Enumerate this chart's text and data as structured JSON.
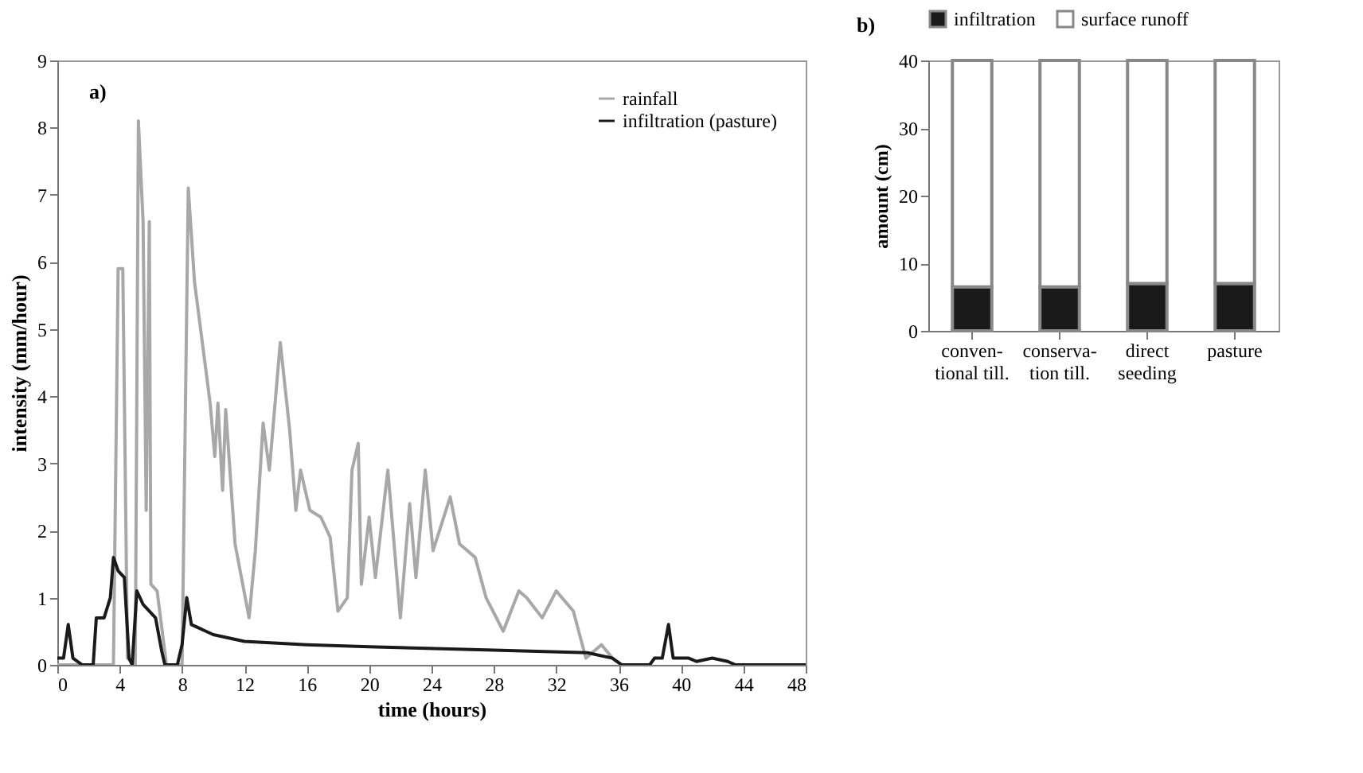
{
  "chart_data": [
    {
      "type": "line",
      "xlabel": "time (hours)",
      "ylabel": "intensity (mm/hour)",
      "annotations": [
        "a)"
      ],
      "legend": "top right",
      "xlim": [
        0,
        48
      ],
      "xticks": [
        0,
        4,
        8,
        12,
        16,
        20,
        24,
        28,
        32,
        36,
        40,
        44,
        48
      ],
      "ylim": [
        0,
        9
      ],
      "yticks": [
        0,
        1,
        2,
        3,
        4,
        5,
        6,
        7,
        8,
        9
      ],
      "line_style": "solid",
      "marker": "none",
      "series": [
        {
          "name": "rainfall",
          "color": "#a8a8a8",
          "x": [
            0,
            3.6,
            3.9,
            4.2,
            4.5,
            5.0,
            5.2,
            5.5,
            5.7,
            5.9,
            6.0,
            6.4,
            7.0,
            8.0,
            8.4,
            8.8,
            9.8,
            10.1,
            10.3,
            10.6,
            10.8,
            11.4,
            12.3,
            12.7,
            13.2,
            13.6,
            14.3,
            14.9,
            15.3,
            15.6,
            16.2,
            16.9,
            17.5,
            18.0,
            18.6,
            18.9,
            19.3,
            19.5,
            20.0,
            20.4,
            21.2,
            22.0,
            22.6,
            23.0,
            23.6,
            24.1,
            25.2,
            25.8,
            26.8,
            27.5,
            28.6,
            29.6,
            30.1,
            31.1,
            32.0,
            33.1,
            33.9,
            34.9,
            35.6,
            36.2
          ],
          "values": [
            0,
            0,
            5.9,
            5.9,
            0.1,
            0,
            8.1,
            6.6,
            2.3,
            6.6,
            1.2,
            1.1,
            0,
            0,
            7.1,
            5.7,
            3.9,
            3.1,
            3.9,
            2.6,
            3.8,
            1.8,
            0.7,
            1.7,
            3.6,
            2.9,
            4.8,
            3.5,
            2.3,
            2.9,
            2.3,
            2.2,
            1.9,
            0.8,
            1.0,
            2.9,
            3.3,
            1.2,
            2.2,
            1.3,
            2.9,
            0.7,
            2.4,
            1.3,
            2.9,
            1.7,
            2.5,
            1.8,
            1.6,
            1.0,
            0.5,
            1.1,
            1.0,
            0.7,
            1.1,
            0.8,
            0.1,
            0.3,
            0.1,
            0
          ]
        },
        {
          "name": "infiltration (pasture)",
          "color": "#1a1a1a",
          "x": [
            0,
            0.4,
            0.7,
            1.0,
            1.6,
            2.3,
            2.5,
            3.0,
            3.4,
            3.6,
            3.9,
            4.3,
            4.6,
            4.8,
            5.1,
            5.5,
            6.3,
            6.7,
            6.9,
            7.7,
            8.0,
            8.3,
            8.6,
            10,
            12,
            16,
            20,
            28,
            34,
            35.6,
            36.2,
            38,
            38.3,
            38.8,
            39.2,
            39.5,
            40.5,
            41,
            42,
            43,
            43.5,
            48
          ],
          "values": [
            0.1,
            0.1,
            0.6,
            0.1,
            0,
            0,
            0.7,
            0.7,
            1.0,
            1.6,
            1.4,
            1.3,
            0.1,
            0,
            1.1,
            0.9,
            0.7,
            0.2,
            0,
            0,
            0.3,
            1.0,
            0.6,
            0.45,
            0.35,
            0.3,
            0.27,
            0.22,
            0.18,
            0.1,
            0,
            0,
            0.1,
            0.1,
            0.6,
            0.1,
            0.1,
            0.05,
            0.1,
            0.05,
            0,
            0
          ]
        }
      ]
    },
    {
      "type": "bar",
      "stacked": true,
      "ylabel": "amount (cm)",
      "annotations": [
        "b)"
      ],
      "legend": "top",
      "categories": [
        "conven-\ntional till.",
        "conserva-\ntion till.",
        "direct\nseeding",
        "pasture"
      ],
      "ylim": [
        0,
        40
      ],
      "yticks": [
        0,
        10,
        20,
        30,
        40
      ],
      "series": [
        {
          "name": "infiltration",
          "color": "#1a1a1a",
          "values": [
            6.5,
            6.5,
            7,
            7
          ]
        },
        {
          "name": "surface runoff",
          "color": "#ffffff",
          "values": [
            33.5,
            33.5,
            33,
            33
          ]
        }
      ]
    }
  ]
}
